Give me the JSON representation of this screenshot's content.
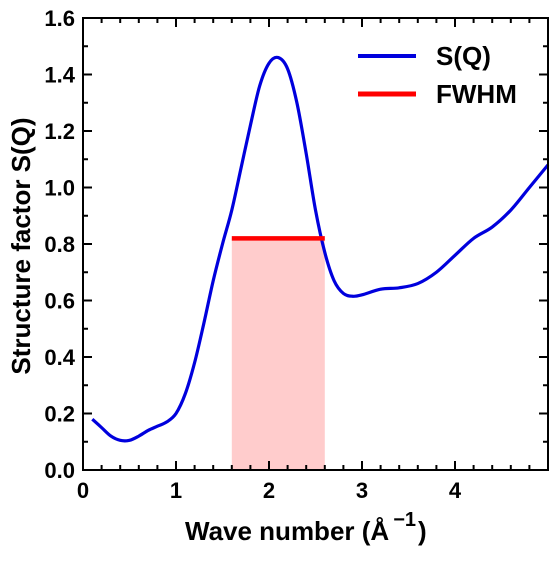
{
  "chart_data": {
    "type": "line",
    "xlabel": "Wave number (Å",
    "xlabel_sup": "−1",
    "xlabel_close": ")",
    "ylabel": "Structure factor S(Q)",
    "xlim": [
      0,
      5
    ],
    "ylim": [
      0,
      1.6
    ],
    "x_ticks": [
      0,
      1,
      2,
      3,
      4
    ],
    "x_tick_labels": [
      "0",
      "1",
      "2",
      "3",
      "4"
    ],
    "y_ticks": [
      0,
      0.2,
      0.4,
      0.6,
      0.8,
      1.0,
      1.2,
      1.4,
      1.6
    ],
    "y_tick_labels": [
      "0.0",
      "0.2",
      "0.4",
      "0.6",
      "0.8",
      "1.0",
      "1.2",
      "1.4",
      "1.6"
    ],
    "x_minor_step": 0.2,
    "y_minor_step": 0.1,
    "grid": false,
    "legend_position": "top-right",
    "series": [
      {
        "name": "S(Q)",
        "color": "#0000dd",
        "x": [
          0.1,
          0.2,
          0.3,
          0.4,
          0.5,
          0.6,
          0.7,
          0.8,
          0.9,
          1.0,
          1.1,
          1.2,
          1.3,
          1.4,
          1.5,
          1.6,
          1.7,
          1.8,
          1.9,
          2.0,
          2.1,
          2.2,
          2.3,
          2.4,
          2.5,
          2.6,
          2.7,
          2.8,
          2.9,
          3.0,
          3.2,
          3.4,
          3.6,
          3.8,
          4.0,
          4.2,
          4.4,
          4.6,
          4.8,
          5.0
        ],
        "y": [
          0.18,
          0.15,
          0.12,
          0.105,
          0.105,
          0.12,
          0.14,
          0.155,
          0.17,
          0.2,
          0.27,
          0.38,
          0.52,
          0.67,
          0.8,
          0.92,
          1.07,
          1.22,
          1.36,
          1.44,
          1.46,
          1.42,
          1.3,
          1.12,
          0.92,
          0.77,
          0.67,
          0.625,
          0.615,
          0.62,
          0.64,
          0.645,
          0.66,
          0.7,
          0.76,
          0.82,
          0.86,
          0.92,
          1.0,
          1.08
        ]
      }
    ],
    "fwhm": {
      "name": "FWHM",
      "color": "#ff0000",
      "y": 0.82,
      "x_start": 1.6,
      "x_end": 2.6,
      "fill_color": "#ffcccc"
    }
  }
}
